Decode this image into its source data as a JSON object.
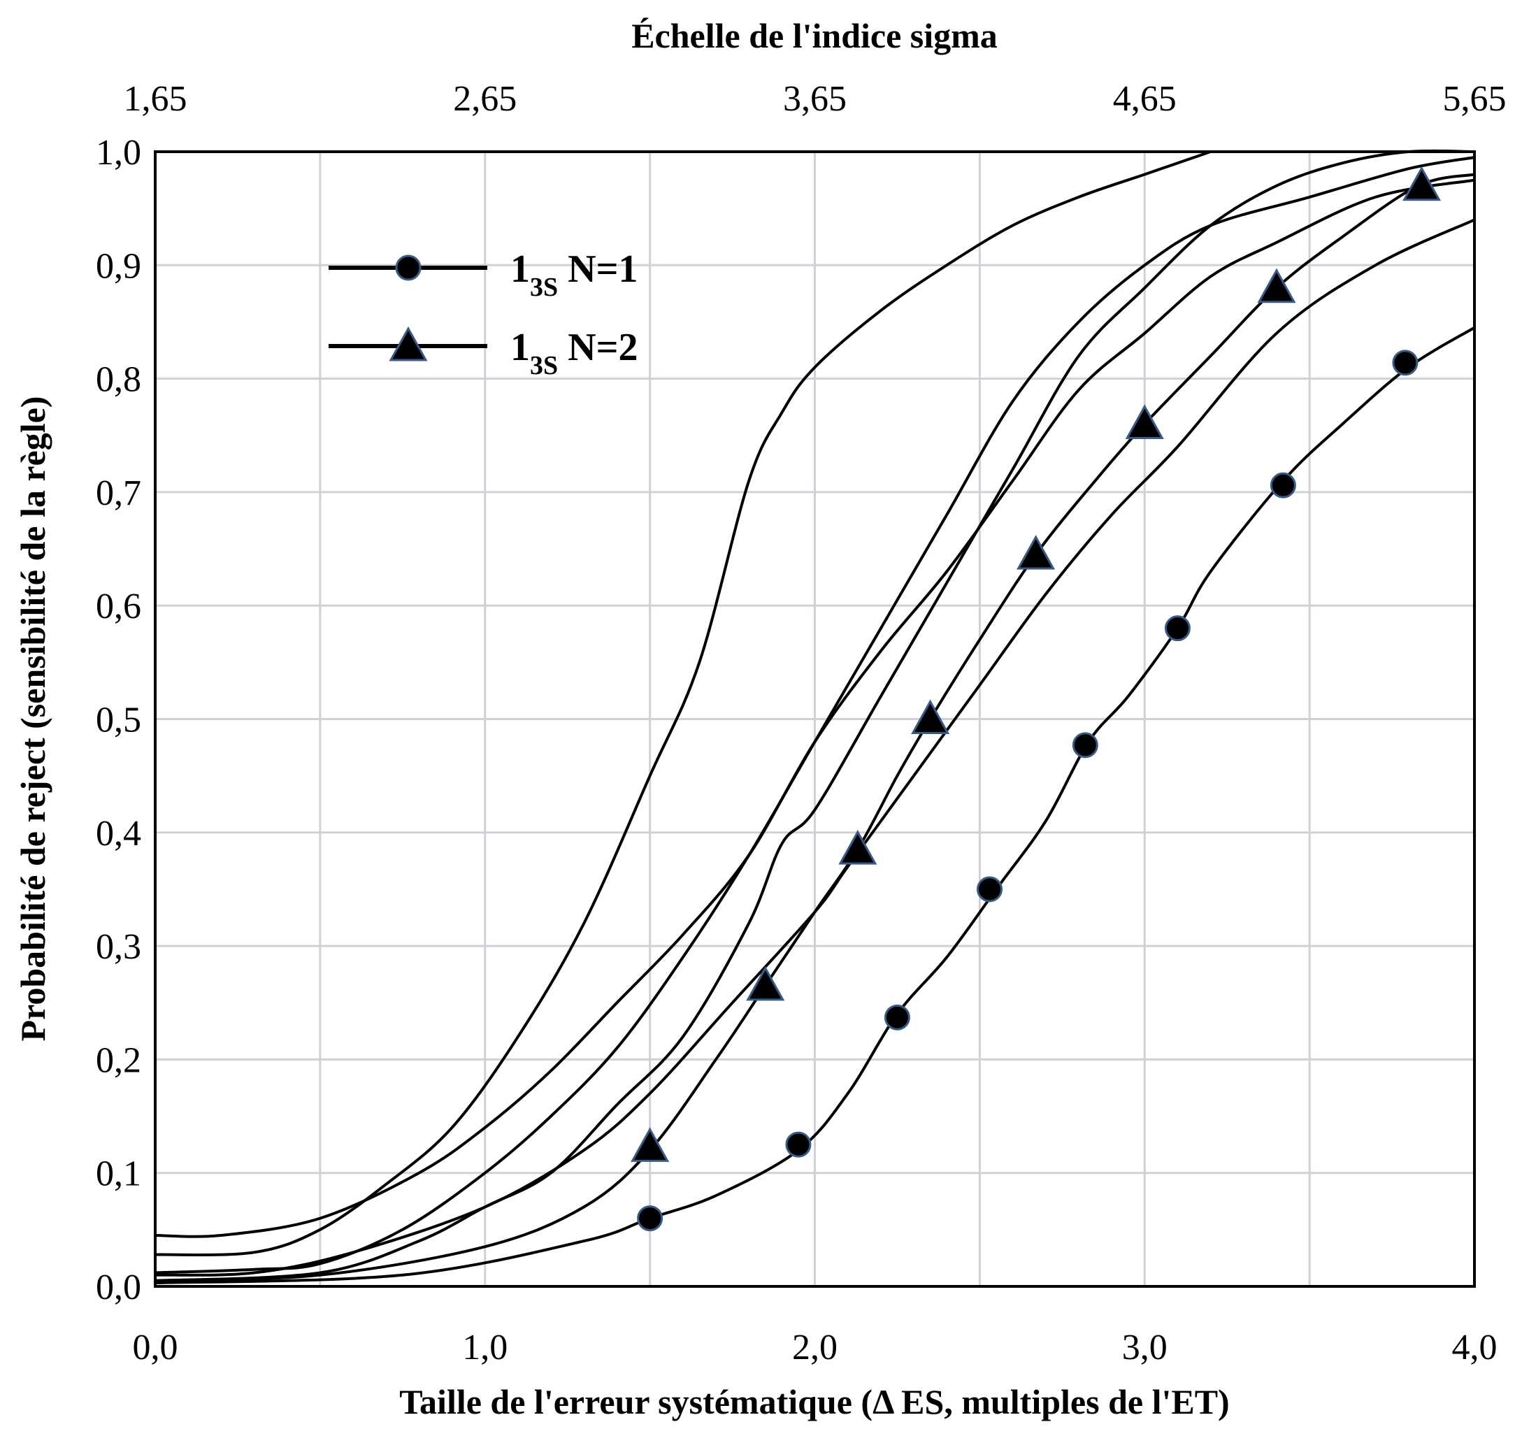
{
  "chart_data": {
    "type": "line",
    "title": "",
    "top_axis": {
      "label": "Échelle de l'indice sigma",
      "tick_labels": [
        "1,65",
        "2,65",
        "3,65",
        "4,65",
        "5,65"
      ],
      "range": [
        1.65,
        5.65
      ]
    },
    "x_axis": {
      "label": "Taille de l'erreur systématique (Δ ES, multiples de l'ET)",
      "tick_labels": [
        "0,0",
        "1,0",
        "2,0",
        "3,0",
        "4,0"
      ],
      "range": [
        0,
        4
      ]
    },
    "y_axis": {
      "label": "Probabilité de reject (sensibilité de la règle)",
      "tick_labels": [
        "0,0",
        "0,1",
        "0,2",
        "0,3",
        "0,4",
        "0,5",
        "0,6",
        "0,7",
        "0,8",
        "0,9",
        "1,0"
      ],
      "range": [
        0,
        1
      ]
    },
    "grid": true,
    "legend": {
      "placement": "top-left",
      "entries": [
        {
          "main": "1",
          "sub": "3S",
          "suffix": " N=1",
          "marker": "circle"
        },
        {
          "main": "1",
          "sub": "3S",
          "suffix": " N=2",
          "marker": "triangle"
        }
      ]
    },
    "colors": {
      "line": "#000000",
      "marker_fill": "#000000",
      "marker_edge": "#3a5a86",
      "grid": "#d0d0d8"
    },
    "series": [
      {
        "marker": "circle",
        "points": [
          [
            0,
            0.003
          ],
          [
            0.75,
            0.01
          ],
          [
            1.3,
            0.04
          ],
          [
            1.5,
            0.06
          ],
          [
            1.7,
            0.08
          ],
          [
            1.95,
            0.12
          ],
          [
            2.1,
            0.17
          ],
          [
            2.25,
            0.24
          ],
          [
            2.4,
            0.29
          ],
          [
            2.55,
            0.35
          ],
          [
            2.7,
            0.41
          ],
          [
            2.83,
            0.48
          ],
          [
            2.95,
            0.52
          ],
          [
            3.1,
            0.58
          ],
          [
            3.2,
            0.63
          ],
          [
            3.42,
            0.71
          ],
          [
            3.6,
            0.76
          ],
          [
            3.8,
            0.81
          ],
          [
            4.0,
            0.845
          ]
        ],
        "marker_points": [
          [
            1.5,
            0.06
          ],
          [
            1.95,
            0.125
          ],
          [
            2.25,
            0.237
          ],
          [
            2.53,
            0.35
          ],
          [
            2.82,
            0.477
          ],
          [
            3.1,
            0.58
          ],
          [
            3.42,
            0.706
          ],
          [
            3.79,
            0.814
          ]
        ]
      },
      {
        "marker": "triangle",
        "points": [
          [
            0,
            0.005
          ],
          [
            0.5,
            0.01
          ],
          [
            1.0,
            0.035
          ],
          [
            1.3,
            0.07
          ],
          [
            1.5,
            0.12
          ],
          [
            1.7,
            0.2
          ],
          [
            1.85,
            0.265
          ],
          [
            2.0,
            0.33
          ],
          [
            2.13,
            0.385
          ],
          [
            2.25,
            0.45
          ],
          [
            2.35,
            0.5
          ],
          [
            2.5,
            0.57
          ],
          [
            2.67,
            0.645
          ],
          [
            2.85,
            0.71
          ],
          [
            3.0,
            0.76
          ],
          [
            3.2,
            0.82
          ],
          [
            3.4,
            0.88
          ],
          [
            3.6,
            0.925
          ],
          [
            3.83,
            0.97
          ],
          [
            4.0,
            0.98
          ]
        ],
        "marker_points": [
          [
            1.5,
            0.123
          ],
          [
            1.85,
            0.265
          ],
          [
            2.13,
            0.385
          ],
          [
            2.35,
            0.5
          ],
          [
            2.67,
            0.645
          ],
          [
            3.0,
            0.76
          ],
          [
            3.4,
            0.88
          ],
          [
            3.84,
            0.97
          ]
        ]
      },
      {
        "marker": "none",
        "points": [
          [
            0,
            0.01
          ],
          [
            0.3,
            0.012
          ],
          [
            0.6,
            0.03
          ],
          [
            1.0,
            0.07
          ],
          [
            1.3,
            0.12
          ],
          [
            1.5,
            0.17
          ],
          [
            1.75,
            0.25
          ],
          [
            2.0,
            0.33
          ],
          [
            2.1,
            0.37
          ],
          [
            2.3,
            0.45
          ],
          [
            2.5,
            0.53
          ],
          [
            2.7,
            0.61
          ],
          [
            2.9,
            0.68
          ],
          [
            3.1,
            0.74
          ],
          [
            3.4,
            0.84
          ],
          [
            3.7,
            0.9
          ],
          [
            4.0,
            0.94
          ]
        ]
      },
      {
        "marker": "none",
        "points": [
          [
            0,
            0.012
          ],
          [
            0.3,
            0.015
          ],
          [
            0.5,
            0.02
          ],
          [
            0.75,
            0.05
          ],
          [
            1.0,
            0.1
          ],
          [
            1.2,
            0.15
          ],
          [
            1.4,
            0.21
          ],
          [
            1.6,
            0.29
          ],
          [
            1.8,
            0.38
          ],
          [
            2.0,
            0.48
          ],
          [
            2.2,
            0.58
          ],
          [
            2.4,
            0.68
          ],
          [
            2.6,
            0.78
          ],
          [
            2.8,
            0.85
          ],
          [
            3.0,
            0.9
          ],
          [
            3.2,
            0.935
          ],
          [
            3.5,
            0.96
          ],
          [
            3.8,
            0.985
          ],
          [
            4.0,
            0.995
          ]
        ]
      },
      {
        "marker": "none",
        "points": [
          [
            0,
            0.045
          ],
          [
            0.2,
            0.045
          ],
          [
            0.5,
            0.06
          ],
          [
            0.8,
            0.1
          ],
          [
            1.0,
            0.14
          ],
          [
            1.2,
            0.19
          ],
          [
            1.4,
            0.25
          ],
          [
            1.6,
            0.31
          ],
          [
            1.8,
            0.38
          ],
          [
            2.0,
            0.48
          ],
          [
            2.2,
            0.56
          ],
          [
            2.4,
            0.63
          ],
          [
            2.6,
            0.71
          ],
          [
            2.8,
            0.79
          ],
          [
            3.0,
            0.84
          ],
          [
            3.2,
            0.89
          ],
          [
            3.4,
            0.92
          ],
          [
            3.7,
            0.96
          ],
          [
            4.0,
            0.975
          ]
        ]
      },
      {
        "marker": "none",
        "points": [
          [
            0,
            0.028
          ],
          [
            0.3,
            0.03
          ],
          [
            0.5,
            0.05
          ],
          [
            0.7,
            0.09
          ],
          [
            0.9,
            0.14
          ],
          [
            1.1,
            0.22
          ],
          [
            1.3,
            0.32
          ],
          [
            1.5,
            0.45
          ],
          [
            1.65,
            0.55
          ],
          [
            1.8,
            0.71
          ],
          [
            1.9,
            0.77
          ],
          [
            2.0,
            0.81
          ],
          [
            2.2,
            0.86
          ],
          [
            2.4,
            0.9
          ],
          [
            2.6,
            0.935
          ],
          [
            2.8,
            0.96
          ],
          [
            3.0,
            0.98
          ],
          [
            3.15,
            0.995
          ],
          [
            3.2,
            1.0
          ]
        ]
      },
      {
        "marker": "none",
        "points": [
          [
            0,
            0.005
          ],
          [
            0.5,
            0.012
          ],
          [
            0.8,
            0.04
          ],
          [
            1.0,
            0.07
          ],
          [
            1.2,
            0.1
          ],
          [
            1.4,
            0.16
          ],
          [
            1.6,
            0.22
          ],
          [
            1.8,
            0.32
          ],
          [
            1.9,
            0.39
          ],
          [
            2.0,
            0.42
          ],
          [
            2.2,
            0.52
          ],
          [
            2.4,
            0.62
          ],
          [
            2.6,
            0.72
          ],
          [
            2.8,
            0.82
          ],
          [
            3.0,
            0.88
          ],
          [
            3.2,
            0.935
          ],
          [
            3.4,
            0.97
          ],
          [
            3.6,
            0.99
          ],
          [
            3.8,
            1.0
          ],
          [
            4.0,
            1.0
          ]
        ]
      }
    ]
  }
}
